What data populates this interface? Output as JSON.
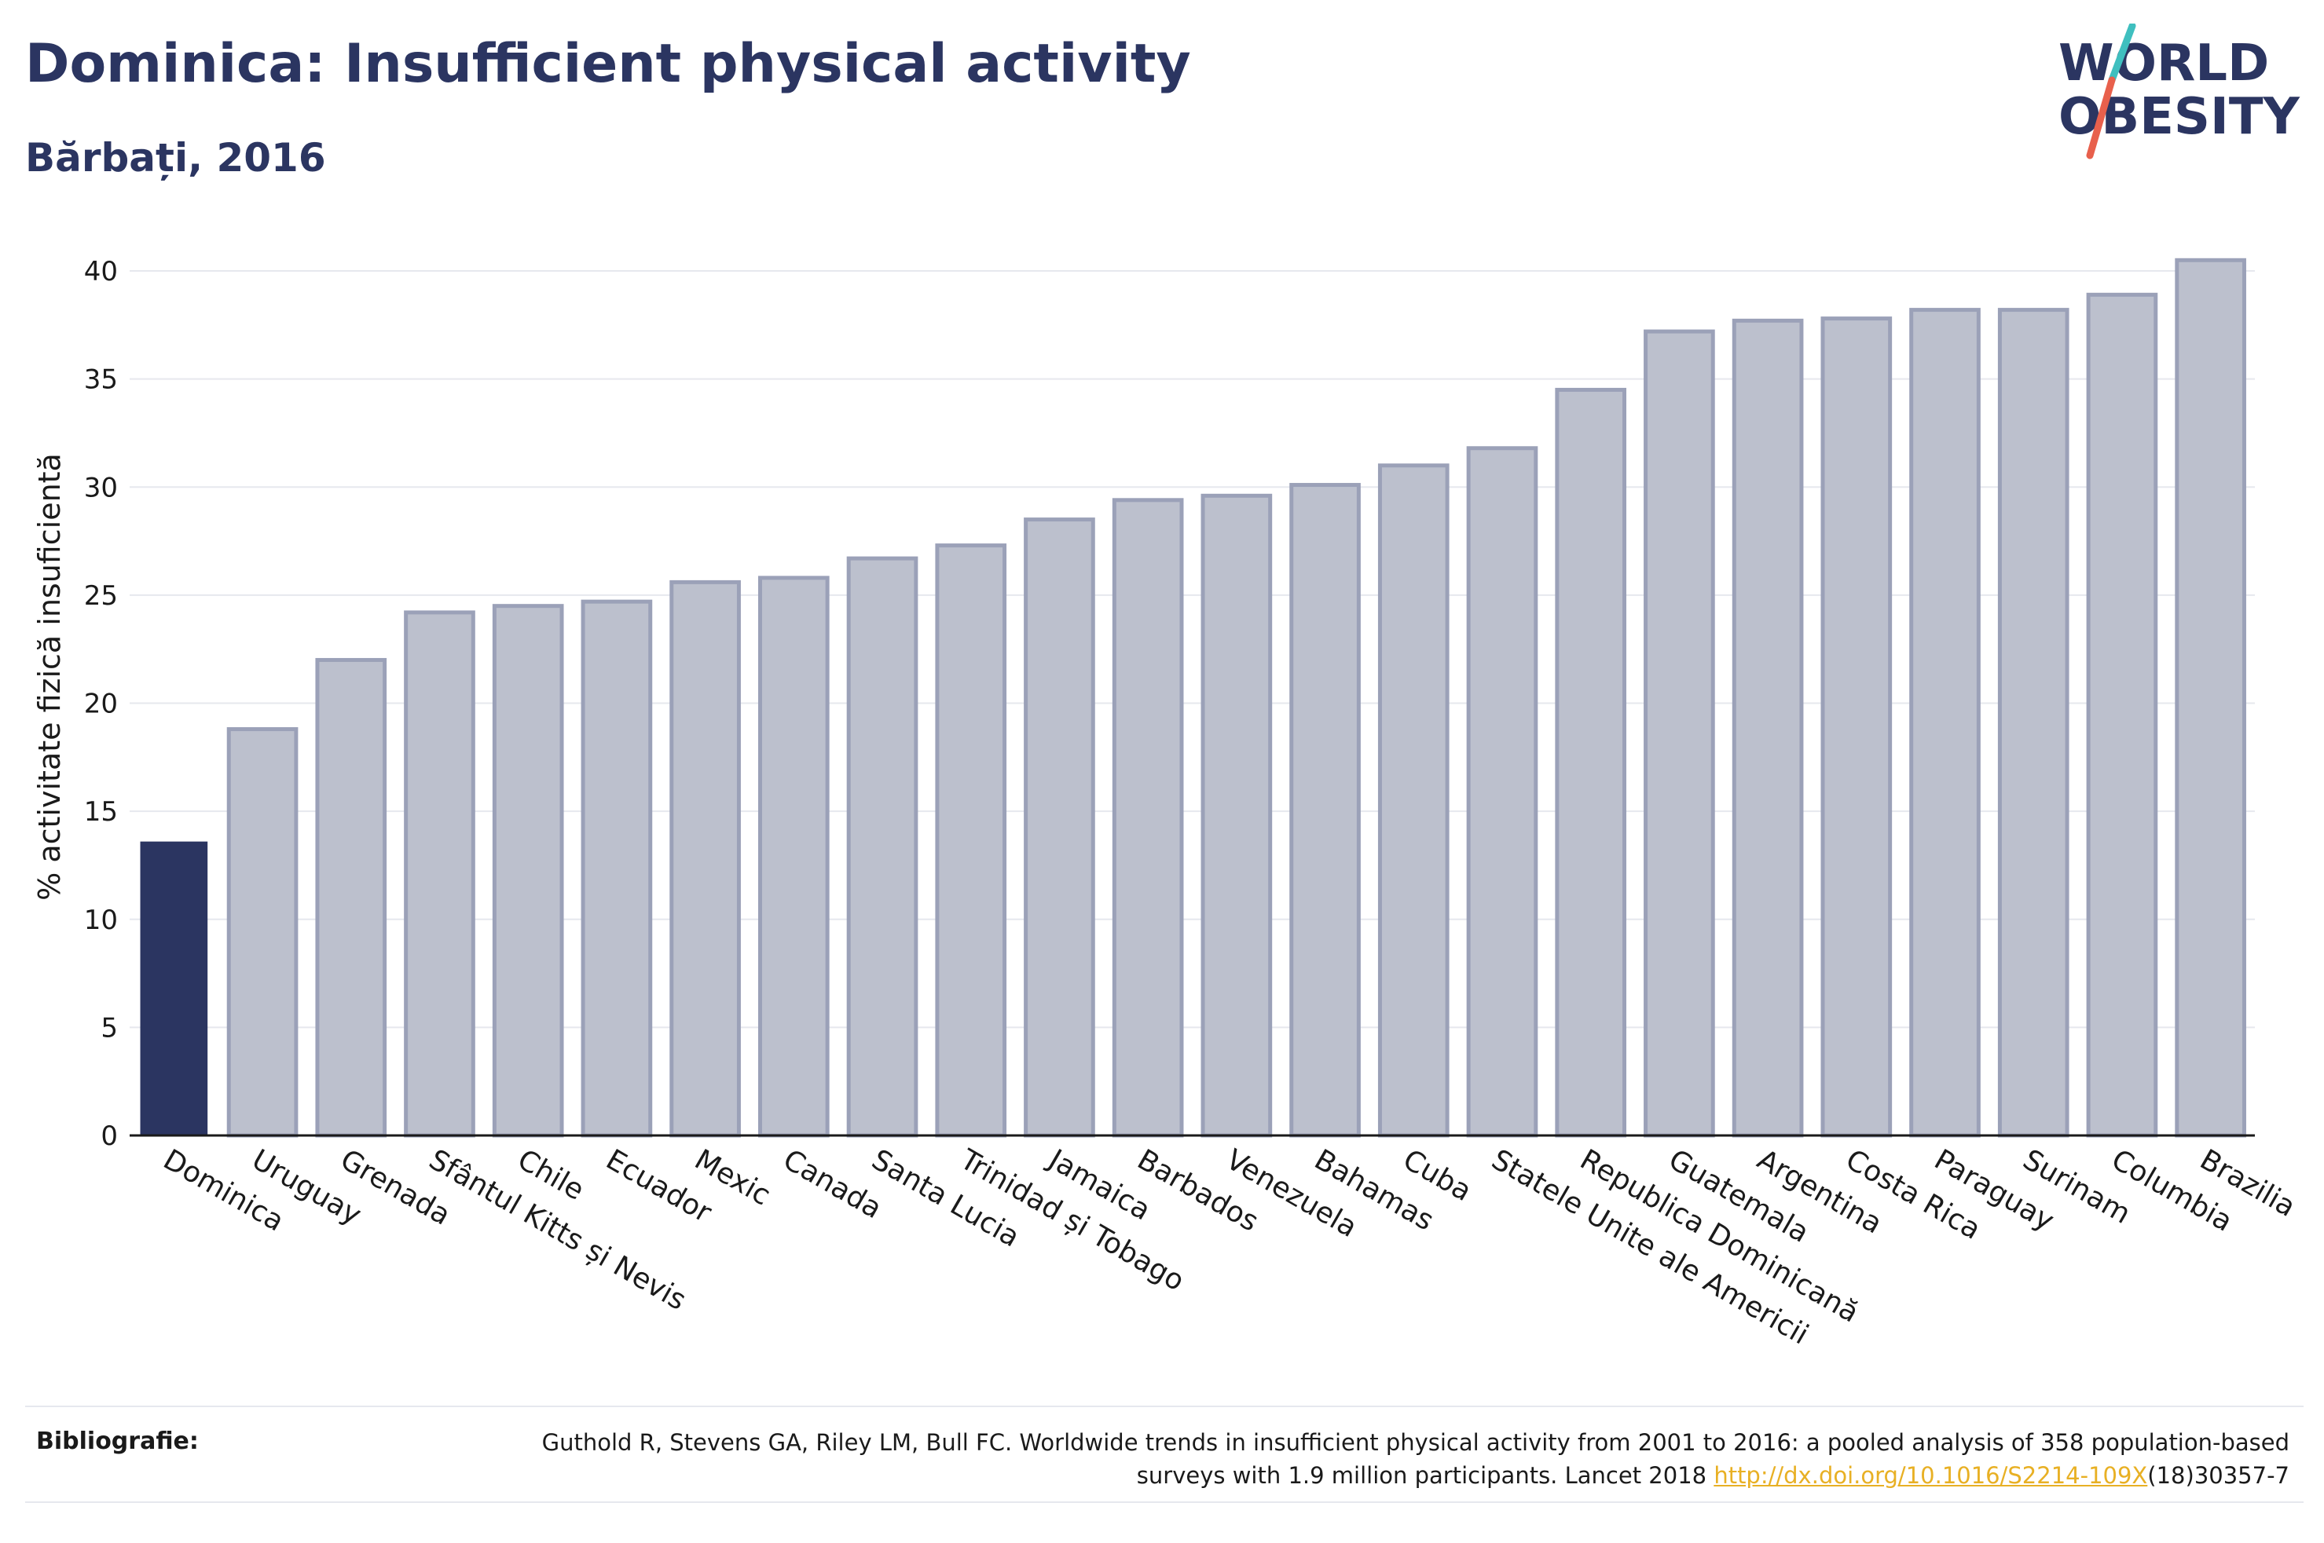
{
  "header": {
    "title": "Dominica: Insufficient physical activity",
    "subtitle": "Bărbați, 2016"
  },
  "logo": {
    "line1": "WORLD",
    "line2": "OBESITY",
    "accent_colors": [
      "#3fbfbf",
      "#e8604c"
    ]
  },
  "colors": {
    "highlight": "#2b3561",
    "bar_fill": "#bcc0cd",
    "bar_stroke": "#9ba1b8",
    "grid": "#e6e8ee"
  },
  "chart_data": {
    "type": "bar",
    "title": "Dominica: Insufficient physical activity",
    "subtitle": "Bărbați, 2016",
    "xlabel": "",
    "ylabel": "% activitate fizică insuficientă",
    "ylim": [
      0,
      42
    ],
    "yticks": [
      0,
      5,
      10,
      15,
      20,
      25,
      30,
      35,
      40
    ],
    "grid": true,
    "highlight_category": "Dominica",
    "categories": [
      "Dominica",
      "Uruguay",
      "Grenada",
      "Sfântul Kitts și Nevis",
      "Chile",
      "Ecuador",
      "Mexic",
      "Canada",
      "Santa Lucia",
      "Trinidad și Tobago",
      "Jamaica",
      "Barbados",
      "Venezuela",
      "Bahamas",
      "Cuba",
      "Statele Unite ale Americii",
      "Republica Dominicană",
      "Guatemala",
      "Argentina",
      "Costa Rica",
      "Paraguay",
      "Surinam",
      "Columbia",
      "Brazilia"
    ],
    "values": [
      13.6,
      18.8,
      22.0,
      24.2,
      24.5,
      24.7,
      25.6,
      25.8,
      26.7,
      27.3,
      28.5,
      29.4,
      29.6,
      30.1,
      31.0,
      31.8,
      34.5,
      37.2,
      37.7,
      37.8,
      38.2,
      38.2,
      38.9,
      40.5
    ]
  },
  "footer": {
    "label": "Bibliografie:",
    "text_before": "Guthold R, Stevens GA, Riley LM, Bull FC. Worldwide trends in insufficient physical activity from 2001 to 2016: a pooled analysis of 358 population-based surveys with 1.9 million participants. Lancet 2018 ",
    "link": "http://dx.doi.org/10.1016/S2214-109X",
    "text_after": "(18)30357-7"
  }
}
